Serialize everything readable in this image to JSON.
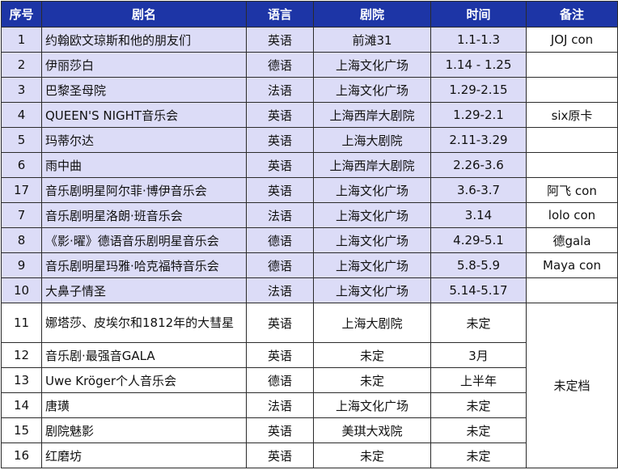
{
  "headers": [
    "序号",
    "剧名",
    "语言",
    "剧院",
    "时间",
    "备注"
  ],
  "rows": [
    {
      "no": "1",
      "name": "约翰欧文琼斯和他的朋友们",
      "lang": "英语",
      "venue": "前滩31",
      "time": "1.1-1.3",
      "note": "JOJ con"
    },
    {
      "no": "2",
      "name": "伊丽莎白",
      "lang": "德语",
      "venue": "上海文化广场",
      "time": "1.14 - 1.25",
      "note": ""
    },
    {
      "no": "3",
      "name": "巴黎圣母院",
      "lang": "法语",
      "venue": "上海文化广场",
      "time": "1.29-2.15",
      "note": ""
    },
    {
      "no": "4",
      "name": "QUEEN'S NIGHT音乐会",
      "lang": "英语",
      "venue": "上海西岸大剧院",
      "time": "1.29-2.1",
      "note": "six原卡"
    },
    {
      "no": "5",
      "name": "玛蒂尔达",
      "lang": "英语",
      "venue": "上海大剧院",
      "time": "2.11-3.29",
      "note": ""
    },
    {
      "no": "6",
      "name": "雨中曲",
      "lang": "英语",
      "venue": "上海西岸大剧院",
      "time": "2.26-3.6",
      "note": ""
    },
    {
      "no": "17",
      "name": "音乐剧明星阿尔菲·博伊音乐会",
      "lang": "英语",
      "venue": "上海文化广场",
      "time": "3.6-3.7",
      "note": "阿飞 con"
    },
    {
      "no": "7",
      "name": "音乐剧明星洛朗·班音乐会",
      "lang": "法语",
      "venue": "上海文化广场",
      "time": "3.14",
      "note": "lolo con"
    },
    {
      "no": "8",
      "name": "《影·曜》德语音乐剧明星音乐会",
      "lang": "德语",
      "venue": "上海文化广场",
      "time": "4.29-5.1",
      "note": "德gala"
    },
    {
      "no": "9",
      "name": "音乐剧明星玛雅·哈克福特音乐会",
      "lang": "德语",
      "venue": "上海文化广场",
      "time": "5.8-5.9",
      "note": "Maya con"
    },
    {
      "no": "10",
      "name": "大鼻子情圣",
      "lang": "法语",
      "venue": "上海文化广场",
      "time": "5.14-5.17",
      "note": ""
    },
    {
      "no": "11",
      "name": "娜塔莎、皮埃尔和1812年的大彗星",
      "lang": "英语",
      "venue": "上海大剧院",
      "time": "未定"
    },
    {
      "no": "12",
      "name": "音乐剧·最强音GALA",
      "lang": "英语",
      "venue": "未定",
      "time": "3月"
    },
    {
      "no": "13",
      "name": "Uwe Kröger个人音乐会",
      "lang": "德语",
      "venue": "未定",
      "time": "上半年"
    },
    {
      "no": "14",
      "name": "唐璜",
      "lang": "法语",
      "venue": "上海文化广场",
      "time": "未定"
    },
    {
      "no": "15",
      "name": "剧院魅影",
      "lang": "英语",
      "venue": "美琪大戏院",
      "time": "未定"
    },
    {
      "no": "16",
      "name": "红磨坊",
      "lang": "英语",
      "venue": "未定",
      "time": "未定"
    }
  ],
  "undetermined_note": "未定档"
}
